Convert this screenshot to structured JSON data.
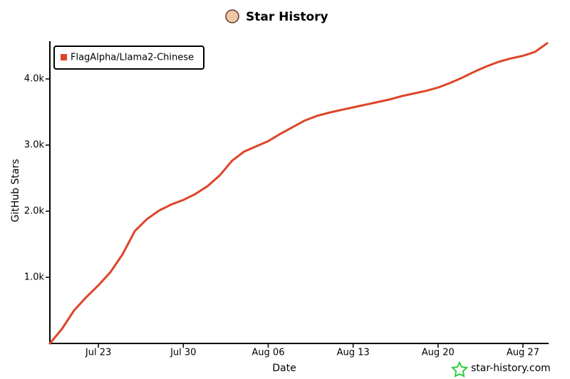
{
  "chart_data": {
    "type": "line",
    "title": "Star History",
    "x_label": "Date",
    "y_label": "GitHub Stars",
    "watermark": "star-history.com",
    "x": [
      "Jul 19",
      "Jul 20",
      "Jul 21",
      "Jul 22",
      "Jul 23",
      "Jul 24",
      "Jul 25",
      "Jul 26",
      "Jul 27",
      "Jul 28",
      "Jul 29",
      "Jul 30",
      "Jul 31",
      "Aug 01",
      "Aug 02",
      "Aug 03",
      "Aug 04",
      "Aug 05",
      "Aug 06",
      "Aug 07",
      "Aug 08",
      "Aug 09",
      "Aug 10",
      "Aug 11",
      "Aug 12",
      "Aug 13",
      "Aug 14",
      "Aug 15",
      "Aug 16",
      "Aug 17",
      "Aug 18",
      "Aug 19",
      "Aug 20",
      "Aug 21",
      "Aug 22",
      "Aug 23",
      "Aug 24",
      "Aug 25",
      "Aug 26",
      "Aug 27",
      "Aug 28",
      "Aug 29"
    ],
    "xticks": [
      "Jul 23",
      "Jul 30",
      "Aug 06",
      "Aug 13",
      "Aug 20",
      "Aug 27"
    ],
    "series": [
      {
        "name": "FlagAlpha/Llama2-Chinese",
        "color": "#dd4528",
        "values": [
          0,
          220,
          500,
          700,
          880,
          1080,
          1350,
          1700,
          1880,
          2010,
          2100,
          2170,
          2260,
          2380,
          2540,
          2760,
          2900,
          2980,
          3060,
          3170,
          3270,
          3370,
          3440,
          3490,
          3530,
          3570,
          3610,
          3650,
          3690,
          3740,
          3780,
          3820,
          3870,
          3940,
          4020,
          4110,
          4190,
          4260,
          4310,
          4350,
          4410,
          4540
        ]
      }
    ],
    "ylim": [
      0,
      4650
    ],
    "yticks": [
      {
        "value": 1000,
        "label": "1.0k"
      },
      {
        "value": 2000,
        "label": "2.0k"
      },
      {
        "value": 3000,
        "label": "3.0k"
      },
      {
        "value": 4000,
        "label": "4.0k"
      }
    ],
    "legend": "top-left"
  }
}
